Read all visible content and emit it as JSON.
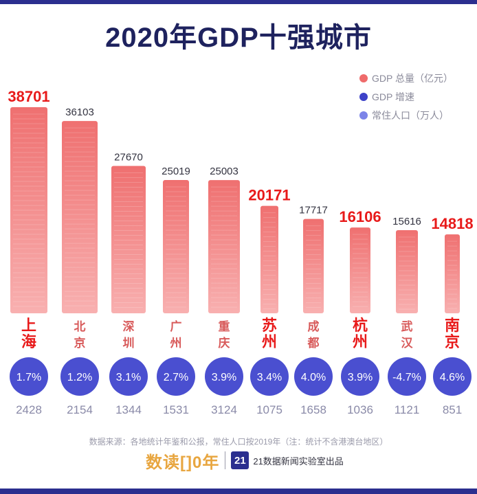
{
  "title": "2020年GDP十强城市",
  "legend": [
    {
      "label": "GDP 总量（亿元）",
      "color": "#ef6b6b"
    },
    {
      "label": "GDP 增速",
      "color": "#3d42c8"
    },
    {
      "label": "常住人口（万人）",
      "color": "#7c84e8"
    }
  ],
  "chart_data": {
    "type": "bar",
    "title": "2020年GDP十强城市",
    "categories": [
      "上海",
      "北京",
      "深圳",
      "广州",
      "重庆",
      "苏州",
      "成都",
      "杭州",
      "武汉",
      "南京"
    ],
    "series": [
      {
        "name": "GDP 总量（亿元）",
        "values": [
          38701,
          36103,
          27670,
          25019,
          25003,
          20171,
          17717,
          16106,
          15616,
          14818
        ]
      },
      {
        "name": "GDP 增速",
        "values": [
          "1.7%",
          "1.2%",
          "3.1%",
          "2.7%",
          "3.9%",
          "3.4%",
          "4.0%",
          "3.9%",
          "-4.7%",
          "4.6%"
        ]
      },
      {
        "name": "常住人口（万人）",
        "values": [
          2428,
          2154,
          1344,
          1531,
          3124,
          1075,
          1658,
          1036,
          1121,
          851
        ]
      }
    ],
    "highlighted": [
      "上海",
      "苏州",
      "杭州",
      "南京"
    ],
    "ylim": [
      0,
      38701
    ]
  },
  "colors": {
    "bar": "#ef7070",
    "bar_light": "#f8b0b0",
    "growth_circle": "#4a4fd0",
    "population_text": "#8a8aa8",
    "highlight_text": "#e81a1a",
    "city_text": "#d85a5a",
    "title": "#1e225e"
  },
  "footer": {
    "source": "数据来源：各地统计年鉴和公报，常住人口按2019年（注：统计不含港澳台地区）",
    "brand_left": "数读[]0年",
    "brand_badge": "21",
    "brand_right": "21数据新闻实验室出品"
  }
}
